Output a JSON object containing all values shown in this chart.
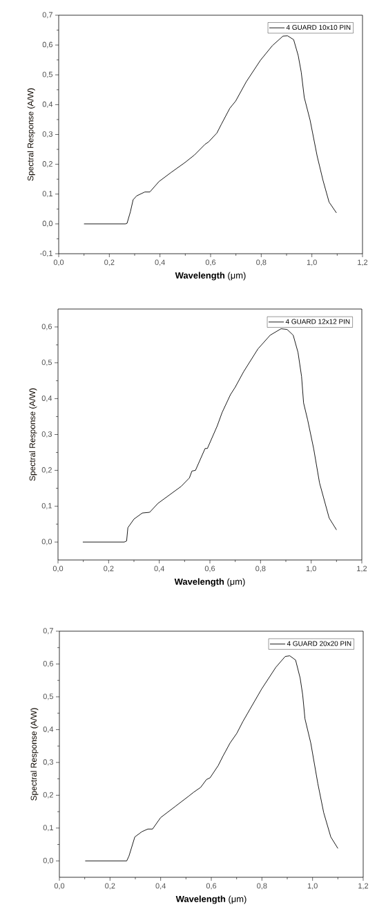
{
  "chart_data": [
    {
      "type": "line",
      "xlabel": "**Wavelength** (μm)",
      "ylabel": "Spectral Response (A/W)",
      "legend": "top right",
      "xlim": [
        0,
        1.2
      ],
      "ylim": [
        -0.1,
        0.7
      ],
      "xticks": [
        {
          "value": 0,
          "label": "0,0"
        },
        {
          "value": 0.2,
          "label": "0,2"
        },
        {
          "value": 0.4,
          "label": "0,4"
        },
        {
          "value": 0.6,
          "label": "0,6"
        },
        {
          "value": 0.8,
          "label": "0,8"
        },
        {
          "value": 1.0,
          "label": "1,0"
        },
        {
          "value": 1.2,
          "label": "1,2"
        }
      ],
      "yticks": [
        {
          "value": -0.1,
          "label": "-0,1"
        },
        {
          "value": 0,
          "label": "0,0"
        },
        {
          "value": 0.1,
          "label": "0,1"
        },
        {
          "value": 0.2,
          "label": "0,2"
        },
        {
          "value": 0.3,
          "label": "0,3"
        },
        {
          "value": 0.4,
          "label": "0,4"
        },
        {
          "value": 0.5,
          "label": "0,5"
        },
        {
          "value": 0.6,
          "label": "0,6"
        },
        {
          "value": 0.7,
          "label": "0,7"
        }
      ],
      "x": [
        0.1,
        0.264,
        0.27,
        0.283,
        0.294,
        0.308,
        0.34,
        0.36,
        0.396,
        0.443,
        0.499,
        0.536,
        0.578,
        0.592,
        0.625,
        0.643,
        0.676,
        0.699,
        0.741,
        0.797,
        0.844,
        0.886,
        0.904,
        0.928,
        0.946,
        0.958,
        0.97,
        0.993,
        1.021,
        1.044,
        1.068,
        1.097
      ],
      "series": [
        {
          "name": "4 GUARD 10x10 PIN",
          "color": "#000000",
          "values": [
            0,
            0,
            0.002,
            0.04,
            0.081,
            0.094,
            0.107,
            0.107,
            0.142,
            0.172,
            0.206,
            0.231,
            0.267,
            0.275,
            0.305,
            0.335,
            0.388,
            0.412,
            0.477,
            0.549,
            0.598,
            0.63,
            0.631,
            0.618,
            0.565,
            0.509,
            0.424,
            0.348,
            0.227,
            0.146,
            0.073,
            0.037
          ]
        }
      ]
    },
    {
      "type": "line",
      "xlabel": "**Wavelength** (μm)",
      "ylabel": "Spectral Response (A/W)",
      "legend": "top right",
      "xlim": [
        0,
        1.2
      ],
      "ylim": [
        -0.05,
        0.65
      ],
      "xticks": [
        {
          "value": 0,
          "label": "0,0"
        },
        {
          "value": 0.2,
          "label": "0,2"
        },
        {
          "value": 0.4,
          "label": "0,4"
        },
        {
          "value": 0.6,
          "label": "0,6"
        },
        {
          "value": 0.8,
          "label": "0,8"
        },
        {
          "value": 1.0,
          "label": "1,0"
        },
        {
          "value": 1.2,
          "label": "1,2"
        }
      ],
      "yticks": [
        {
          "value": 0,
          "label": "0,0"
        },
        {
          "value": 0.1,
          "label": "0,1"
        },
        {
          "value": 0.2,
          "label": "0,2"
        },
        {
          "value": 0.3,
          "label": "0,3"
        },
        {
          "value": 0.4,
          "label": "0,4"
        },
        {
          "value": 0.5,
          "label": "0,5"
        },
        {
          "value": 0.6,
          "label": "0,6"
        }
      ],
      "x": [
        0.098,
        0.262,
        0.271,
        0.276,
        0.3,
        0.333,
        0.362,
        0.395,
        0.486,
        0.519,
        0.529,
        0.543,
        0.581,
        0.59,
        0.629,
        0.648,
        0.681,
        0.7,
        0.733,
        0.79,
        0.838,
        0.881,
        0.905,
        0.929,
        0.948,
        0.962,
        0.97,
        0.986,
        1.01,
        1.033,
        1.071,
        1.1
      ],
      "series": [
        {
          "name": "4 GUARD 12x12 PIN",
          "color": "#000000",
          "values": [
            0,
            0,
            0.003,
            0.04,
            0.064,
            0.081,
            0.083,
            0.108,
            0.155,
            0.179,
            0.198,
            0.2,
            0.261,
            0.261,
            0.324,
            0.361,
            0.411,
            0.432,
            0.475,
            0.539,
            0.577,
            0.595,
            0.593,
            0.577,
            0.529,
            0.462,
            0.388,
            0.341,
            0.26,
            0.165,
            0.067,
            0.034
          ]
        }
      ]
    },
    {
      "type": "line",
      "xlabel": "**Wavelength** (μm)",
      "ylabel": "Spectral Response (A/W)",
      "legend": "top right",
      "xlim": [
        0,
        1.2
      ],
      "ylim": [
        -0.05,
        0.7
      ],
      "xticks": [
        {
          "value": 0,
          "label": "0,0"
        },
        {
          "value": 0.2,
          "label": "0,2"
        },
        {
          "value": 0.4,
          "label": "0,4"
        },
        {
          "value": 0.6,
          "label": "0,6"
        },
        {
          "value": 0.8,
          "label": "0,8"
        },
        {
          "value": 1.0,
          "label": "1,0"
        },
        {
          "value": 1.2,
          "label": "1,2"
        }
      ],
      "yticks": [
        {
          "value": 0,
          "label": "0,0"
        },
        {
          "value": 0.1,
          "label": "0,1"
        },
        {
          "value": 0.2,
          "label": "0,2"
        },
        {
          "value": 0.3,
          "label": "0,3"
        },
        {
          "value": 0.4,
          "label": "0,4"
        },
        {
          "value": 0.5,
          "label": "0,5"
        },
        {
          "value": 0.6,
          "label": "0,6"
        },
        {
          "value": 0.7,
          "label": "0,7"
        }
      ],
      "x": [
        0.102,
        0.266,
        0.275,
        0.298,
        0.326,
        0.349,
        0.368,
        0.4,
        0.456,
        0.512,
        0.53,
        0.558,
        0.581,
        0.595,
        0.627,
        0.646,
        0.674,
        0.701,
        0.725,
        0.799,
        0.855,
        0.892,
        0.91,
        0.933,
        0.951,
        0.961,
        0.97,
        0.993,
        1.021,
        1.044,
        1.072,
        1.1
      ],
      "series": [
        {
          "name": "4 GUARD 20x20 PIN",
          "color": "#000000",
          "values": [
            0,
            0,
            0.015,
            0.073,
            0.089,
            0.097,
            0.097,
            0.132,
            0.165,
            0.198,
            0.209,
            0.224,
            0.248,
            0.253,
            0.29,
            0.319,
            0.359,
            0.389,
            0.425,
            0.524,
            0.59,
            0.623,
            0.625,
            0.612,
            0.557,
            0.506,
            0.433,
            0.359,
            0.235,
            0.147,
            0.073,
            0.038
          ]
        }
      ]
    }
  ]
}
